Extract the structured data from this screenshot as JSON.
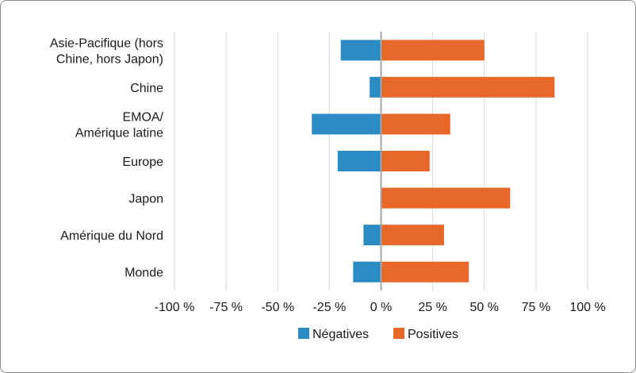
{
  "chart_data": {
    "type": "bar",
    "orientation": "horizontal",
    "categories": [
      [
        "Asie-Pacifique (hors",
        "Chine, hors Japon)"
      ],
      [
        "Chine"
      ],
      [
        "EMOA/",
        "Amérique latine"
      ],
      [
        "Europe"
      ],
      [
        "Japon"
      ],
      [
        "Amérique du Nord"
      ],
      [
        "Monde"
      ]
    ],
    "series": [
      {
        "name": "Négatives",
        "color": "#2b8cc4",
        "values": [
          -19.5,
          -5.5,
          -33.5,
          -21,
          0,
          -8.5,
          -13.5
        ]
      },
      {
        "name": "Positives",
        "color": "#e8682a",
        "values": [
          50,
          84,
          33.5,
          23.5,
          62.5,
          30.5,
          42.5
        ]
      }
    ],
    "xlim": [
      -100,
      100
    ],
    "xticks": [
      -100,
      -75,
      -50,
      -25,
      0,
      25,
      50,
      75,
      100
    ],
    "xtick_labels": [
      "-100 %",
      "-75 %",
      "-50 %",
      "-25 %",
      "0 %",
      "25 %",
      "50 %",
      "75 %",
      "100 %"
    ],
    "grid": true,
    "legend": "bottom-center",
    "colors": {
      "grid": "#d9d9d9",
      "zero_line": "#a6a6a6"
    }
  }
}
